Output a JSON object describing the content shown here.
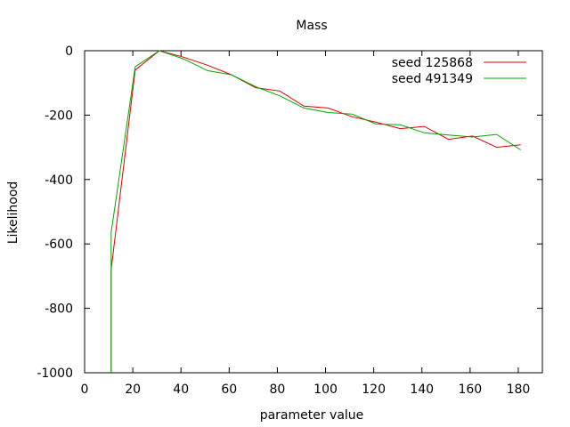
{
  "chart_data": {
    "type": "line",
    "title": "Mass",
    "xlabel": "parameter value",
    "ylabel": "Likelihood",
    "xlim": [
      0,
      190
    ],
    "ylim": [
      -1000,
      0
    ],
    "xticks": [
      0,
      20,
      40,
      60,
      80,
      100,
      120,
      140,
      160,
      180
    ],
    "yticks": [
      -1000,
      -800,
      -600,
      -400,
      -200,
      0
    ],
    "legend_position": "top-right",
    "grid": false,
    "series": [
      {
        "name": "seed 125868",
        "color": "#dd0000",
        "points": [
          [
            11,
            -1000
          ],
          [
            11,
            -680
          ],
          [
            21,
            -60
          ],
          [
            31,
            0
          ],
          [
            41,
            -20
          ],
          [
            51,
            -45
          ],
          [
            61,
            -75
          ],
          [
            71,
            -115
          ],
          [
            81,
            -125
          ],
          [
            91,
            -172
          ],
          [
            101,
            -178
          ],
          [
            111,
            -205
          ],
          [
            121,
            -222
          ],
          [
            131,
            -242
          ],
          [
            141,
            -235
          ],
          [
            151,
            -275
          ],
          [
            161,
            -265
          ],
          [
            171,
            -300
          ],
          [
            181,
            -292
          ]
        ]
      },
      {
        "name": "seed 491349",
        "color": "#00a800",
        "points": [
          [
            11,
            -1000
          ],
          [
            11,
            -565
          ],
          [
            21,
            -50
          ],
          [
            31,
            0
          ],
          [
            41,
            -25
          ],
          [
            51,
            -62
          ],
          [
            61,
            -75
          ],
          [
            71,
            -112
          ],
          [
            81,
            -140
          ],
          [
            91,
            -178
          ],
          [
            101,
            -192
          ],
          [
            111,
            -197
          ],
          [
            121,
            -228
          ],
          [
            131,
            -230
          ],
          [
            141,
            -255
          ],
          [
            151,
            -262
          ],
          [
            161,
            -268
          ],
          [
            171,
            -260
          ],
          [
            181,
            -308
          ]
        ]
      }
    ]
  }
}
